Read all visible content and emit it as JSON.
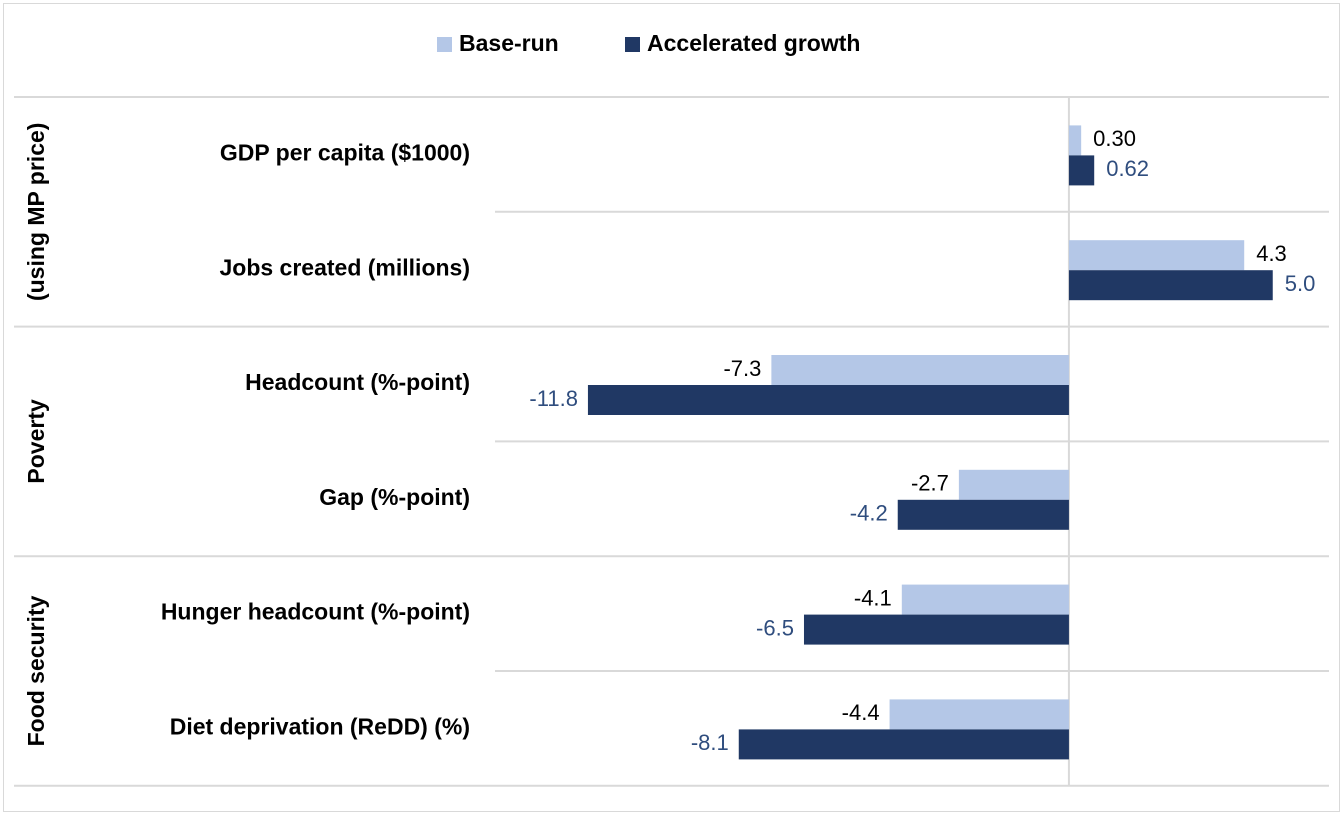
{
  "chart_data": {
    "type": "bar",
    "orientation": "horizontal",
    "categories": [
      "GDP per capita ($1000)",
      "Jobs created (millions)",
      "Headcount (%-point)",
      "Gap (%-point)",
      "Hunger headcount (%-point)",
      "Diet deprivation (ReDD) (%)"
    ],
    "category_groups": [
      "(using MP price)",
      "(using MP price)",
      "Poverty",
      "Poverty",
      "Food security",
      "Food security"
    ],
    "series": [
      {
        "name": "Base-run",
        "color": "#b4c7e7",
        "label_color": "#000000",
        "values": [
          0.3,
          4.3,
          -7.3,
          -2.7,
          -4.1,
          -4.4
        ],
        "value_labels": [
          "0.30",
          "4.3",
          "-7.3",
          "-2.7",
          "-4.1",
          "-4.4"
        ]
      },
      {
        "name": "Accelerated growth",
        "color": "#203864",
        "label_color": "#2f4d7e",
        "values": [
          0.62,
          5.0,
          -11.8,
          -4.2,
          -6.5,
          -8.1
        ],
        "value_labels": [
          "0.62",
          "5.0",
          "-11.8",
          "-4.2",
          "-6.5",
          "-8.1"
        ]
      }
    ],
    "xlim": [
      -14.08,
      6.38
    ],
    "legend": "top"
  }
}
